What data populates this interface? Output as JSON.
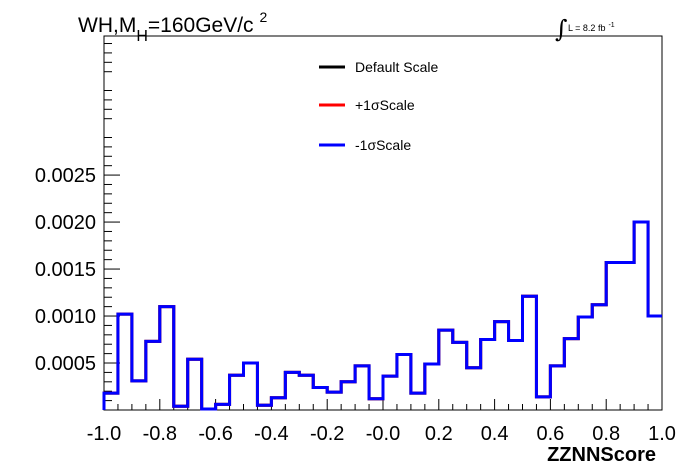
{
  "chart_data": {
    "type": "line",
    "title_parts": {
      "pre": "WH,M",
      "sub": "H",
      "post": "=160GeV/c",
      "sup": "2"
    },
    "lumi": {
      "integral_symbol": "∫",
      "text": "L = 8.2 fb",
      "sup": "-1"
    },
    "xlabel": "ZZNNScore",
    "ylabel": "",
    "xlim": [
      -1.0,
      1.0
    ],
    "ylim": [
      0.0,
      0.00398
    ],
    "xticks": [
      -1.0,
      -0.8,
      -0.6,
      -0.4,
      -0.2,
      0.0,
      0.2,
      0.4,
      0.6,
      0.8,
      1.0
    ],
    "xtick_labels": [
      "-1.0",
      "-0.8",
      "-0.6",
      "-0.4",
      "-0.2",
      "-0.0",
      "0.2",
      "0.4",
      "0.6",
      "0.8",
      "1.0"
    ],
    "yticks": [
      0.0005,
      0.001,
      0.0015,
      0.002,
      0.0025
    ],
    "ytick_labels": [
      "0.0005",
      "0.0010",
      "0.0015",
      "0.0020",
      "0.0025"
    ],
    "grid": false,
    "legend_position": "top-center",
    "bin_edges": [
      -1.0,
      -0.95,
      -0.9,
      -0.85,
      -0.8,
      -0.75,
      -0.7,
      -0.65,
      -0.6,
      -0.55,
      -0.5,
      -0.45,
      -0.4,
      -0.35,
      -0.3,
      -0.25,
      -0.2,
      -0.15,
      -0.1,
      -0.05,
      0.0,
      0.05,
      0.1,
      0.15,
      0.2,
      0.25,
      0.3,
      0.35,
      0.4,
      0.45,
      0.5,
      0.55,
      0.6,
      0.65,
      0.7,
      0.75,
      0.8,
      0.85,
      0.9,
      0.95,
      1.0
    ],
    "series": [
      {
        "name": "Default Scale",
        "color": "#000000",
        "values": [
          0.00018,
          0.00102,
          0.00031,
          0.00073,
          0.0011,
          4e-05,
          0.00054,
          1e-05,
          6e-05,
          0.00037,
          0.0005,
          5e-05,
          0.00013,
          0.0004,
          0.00037,
          0.00024,
          0.00019,
          0.0003,
          0.00047,
          0.00012,
          0.00036,
          0.00059,
          0.00018,
          0.00049,
          0.00085,
          0.00072,
          0.00045,
          0.00075,
          0.00094,
          0.00074,
          0.00121,
          0.00014,
          0.00047,
          0.00076,
          0.00099,
          0.00112,
          0.00157,
          0.00157,
          0.002,
          0.001
        ]
      },
      {
        "name": "+1σScale",
        "color": "#ff0000",
        "values": [
          0.00018,
          0.00102,
          0.00031,
          0.00073,
          0.0011,
          4e-05,
          0.00054,
          1e-05,
          6e-05,
          0.00037,
          0.0005,
          5e-05,
          0.00013,
          0.0004,
          0.00037,
          0.00024,
          0.00019,
          0.0003,
          0.00047,
          0.00012,
          0.00036,
          0.00059,
          0.00018,
          0.00049,
          0.00085,
          0.00072,
          0.00045,
          0.00075,
          0.00094,
          0.00074,
          0.00121,
          0.00014,
          0.00047,
          0.00076,
          0.00099,
          0.00112,
          0.00157,
          0.00157,
          0.002,
          0.001
        ]
      },
      {
        "name": "-1σScale",
        "color": "#0000ff",
        "values": [
          0.00018,
          0.00102,
          0.00031,
          0.00073,
          0.0011,
          4e-05,
          0.00054,
          1e-05,
          6e-05,
          0.00037,
          0.0005,
          5e-05,
          0.00013,
          0.0004,
          0.00037,
          0.00024,
          0.00019,
          0.0003,
          0.00047,
          0.00012,
          0.00036,
          0.00059,
          0.00018,
          0.00049,
          0.00085,
          0.00072,
          0.00045,
          0.00075,
          0.00094,
          0.00074,
          0.00121,
          0.00014,
          0.00047,
          0.00076,
          0.00099,
          0.00112,
          0.00157,
          0.00157,
          0.002,
          0.001
        ]
      }
    ]
  }
}
